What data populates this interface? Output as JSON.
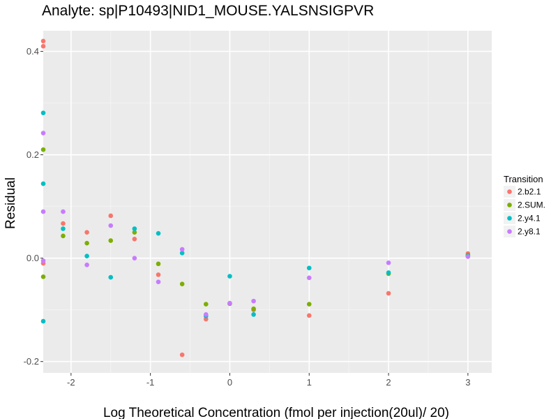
{
  "chart_data": {
    "type": "scatter",
    "title": "Analyte: sp|P10493|NID1_MOUSE.YALSNSIGPVR",
    "xlabel": "Log Theoretical Concentration (fmol per injection(20ul)/ 20)",
    "ylabel": "Residual",
    "xlim": [
      -2.35,
      3.3
    ],
    "ylim": [
      -0.222,
      0.44
    ],
    "x_ticks": [
      -2,
      -1,
      0,
      1,
      2,
      3
    ],
    "x_tick_labels": [
      "-2",
      "-1",
      "0",
      "1",
      "2",
      "3"
    ],
    "y_ticks": [
      -0.2,
      0.0,
      0.2,
      0.4
    ],
    "y_tick_labels": [
      "-0.2",
      "0.0",
      "0.2",
      "0.4"
    ],
    "grid": true,
    "legend_title": "Transition",
    "legend_position": "right",
    "series": [
      {
        "name": "2.b2.1",
        "color": "#F8766D",
        "points": [
          [
            -2.35,
            0.42
          ],
          [
            -2.35,
            0.41
          ],
          [
            -2.35,
            -0.01
          ],
          [
            -2.1,
            0.067
          ],
          [
            -1.8,
            0.05
          ],
          [
            -1.5,
            0.082
          ],
          [
            -1.2,
            0.037
          ],
          [
            -0.9,
            -0.032
          ],
          [
            -0.6,
            -0.187
          ],
          [
            -0.3,
            -0.118
          ],
          [
            0.0,
            -0.088
          ],
          [
            0.3,
            -0.1
          ],
          [
            1.0,
            -0.111
          ],
          [
            2.0,
            -0.068
          ],
          [
            3.0,
            0.009
          ]
        ]
      },
      {
        "name": "2.SUM.",
        "color": "#7CAE00",
        "points": [
          [
            -2.35,
            0.21
          ],
          [
            -2.35,
            -0.036
          ],
          [
            -2.1,
            0.043
          ],
          [
            -1.8,
            0.029
          ],
          [
            -1.5,
            0.034
          ],
          [
            -1.2,
            0.05
          ],
          [
            -0.9,
            -0.011
          ],
          [
            -0.6,
            -0.05
          ],
          [
            -0.3,
            -0.089
          ],
          [
            0.0,
            -0.088
          ],
          [
            0.3,
            -0.098
          ],
          [
            1.0,
            -0.089
          ],
          [
            2.0,
            -0.03
          ],
          [
            3.0,
            0.006
          ]
        ]
      },
      {
        "name": "2.y4.1",
        "color": "#00BFC4",
        "points": [
          [
            -2.35,
            0.281
          ],
          [
            -2.35,
            0.144
          ],
          [
            -2.35,
            -0.122
          ],
          [
            -2.1,
            0.057
          ],
          [
            -1.8,
            0.004
          ],
          [
            -1.5,
            -0.037
          ],
          [
            -1.2,
            0.057
          ],
          [
            -0.9,
            0.048
          ],
          [
            -0.6,
            0.01
          ],
          [
            -0.3,
            -0.112
          ],
          [
            0.0,
            -0.035
          ],
          [
            0.3,
            -0.109
          ],
          [
            1.0,
            -0.019
          ],
          [
            2.0,
            -0.028
          ],
          [
            3.0,
            0.004
          ]
        ]
      },
      {
        "name": "2.y8.1",
        "color": "#C77CFF",
        "points": [
          [
            -2.35,
            0.242
          ],
          [
            -2.35,
            0.09
          ],
          [
            -2.35,
            -0.005
          ],
          [
            -2.1,
            0.09
          ],
          [
            -1.8,
            -0.013
          ],
          [
            -1.5,
            0.063
          ],
          [
            -1.2,
            0.0
          ],
          [
            -0.9,
            -0.046
          ],
          [
            -0.6,
            0.017
          ],
          [
            -0.3,
            -0.109
          ],
          [
            0.0,
            -0.087
          ],
          [
            0.3,
            -0.083
          ],
          [
            1.0,
            -0.038
          ],
          [
            2.0,
            -0.009
          ],
          [
            3.0,
            0.003
          ]
        ]
      }
    ]
  }
}
